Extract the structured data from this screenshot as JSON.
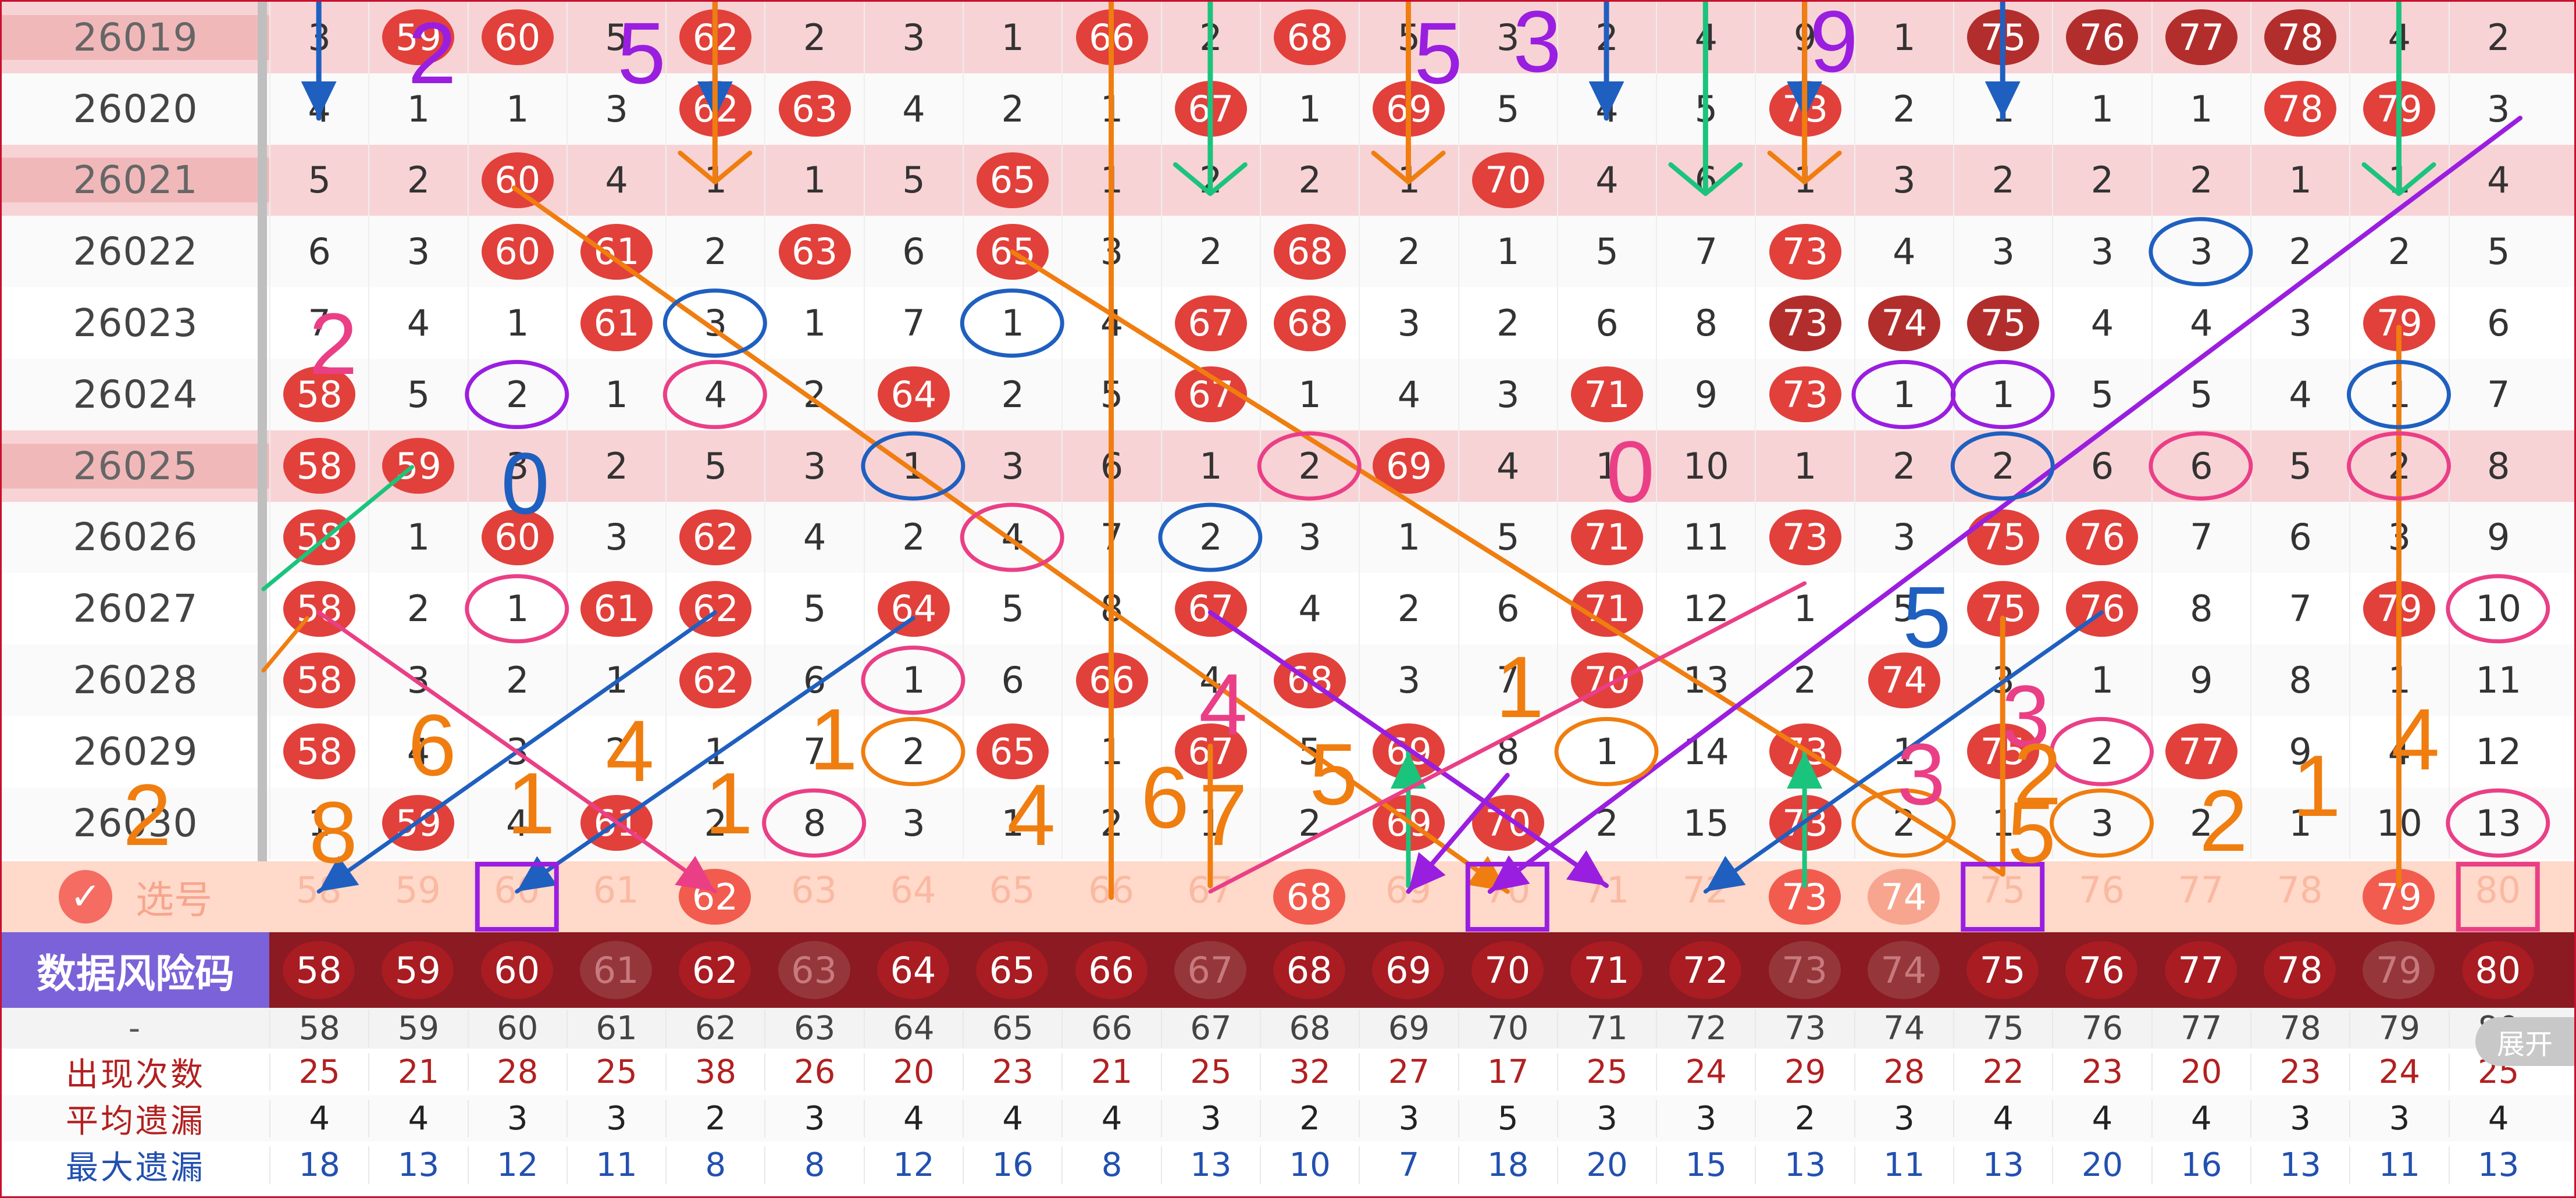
{
  "numbers": [
    "58",
    "59",
    "60",
    "61",
    "62",
    "63",
    "64",
    "65",
    "66",
    "67",
    "68",
    "69",
    "70",
    "71",
    "72",
    "73",
    "74",
    "75",
    "76",
    "77",
    "78",
    "79",
    "80"
  ],
  "rows": [
    {
      "issue": "26019",
      "hl": true,
      "cells": [
        "3",
        "59",
        "60",
        "5",
        "62",
        "2",
        "3",
        "1",
        "66",
        "2",
        "68",
        "5",
        "3",
        "2",
        "4",
        "9",
        "1",
        "75",
        "76",
        "77",
        "78",
        "4",
        "2"
      ],
      "balls": [
        1,
        2,
        4,
        8,
        10,
        17,
        18,
        19,
        20
      ],
      "dark": [
        17,
        18,
        19,
        20
      ]
    },
    {
      "issue": "26020",
      "cells": [
        "4",
        "1",
        "1",
        "3",
        "62",
        "63",
        "4",
        "2",
        "1",
        "67",
        "1",
        "69",
        "5",
        "4",
        "5",
        "73",
        "2",
        "1",
        "1",
        "1",
        "78",
        "79",
        "3"
      ],
      "balls": [
        4,
        5,
        9,
        11,
        15,
        20,
        21
      ]
    },
    {
      "issue": "26021",
      "hl": true,
      "cells": [
        "5",
        "2",
        "60",
        "4",
        "1",
        "1",
        "5",
        "65",
        "1",
        "2",
        "2",
        "1",
        "70",
        "4",
        "6",
        "1",
        "3",
        "2",
        "2",
        "2",
        "1",
        "1",
        "4"
      ],
      "balls": [
        2,
        7,
        12
      ]
    },
    {
      "issue": "26022",
      "cells": [
        "6",
        "3",
        "60",
        "61",
        "2",
        "63",
        "6",
        "65",
        "3",
        "2",
        "68",
        "2",
        "1",
        "5",
        "7",
        "73",
        "4",
        "3",
        "3",
        "3",
        "2",
        "2",
        "5"
      ],
      "balls": [
        2,
        3,
        5,
        7,
        10,
        15
      ]
    },
    {
      "issue": "26023",
      "cells": [
        "7",
        "4",
        "1",
        "61",
        "3",
        "1",
        "7",
        "1",
        "4",
        "67",
        "68",
        "3",
        "2",
        "6",
        "8",
        "73",
        "74",
        "75",
        "4",
        "4",
        "3",
        "79",
        "6"
      ],
      "balls": [
        3,
        9,
        10,
        15,
        16,
        17,
        21
      ],
      "dark": [
        15,
        16,
        17
      ]
    },
    {
      "issue": "26024",
      "cells": [
        "58",
        "5",
        "2",
        "1",
        "4",
        "2",
        "64",
        "2",
        "5",
        "67",
        "1",
        "4",
        "3",
        "71",
        "9",
        "73",
        "1",
        "1",
        "5",
        "5",
        "4",
        "1",
        "7"
      ],
      "balls": [
        0,
        6,
        9,
        13,
        15
      ]
    },
    {
      "issue": "26025",
      "hl": true,
      "cells": [
        "58",
        "59",
        "3",
        "2",
        "5",
        "3",
        "1",
        "3",
        "6",
        "1",
        "2",
        "69",
        "4",
        "1",
        "10",
        "1",
        "2",
        "2",
        "6",
        "6",
        "5",
        "2",
        "8"
      ],
      "balls": [
        0,
        1,
        11
      ]
    },
    {
      "issue": "26026",
      "cells": [
        "58",
        "1",
        "60",
        "3",
        "62",
        "4",
        "2",
        "4",
        "7",
        "2",
        "3",
        "1",
        "5",
        "71",
        "11",
        "73",
        "3",
        "75",
        "76",
        "7",
        "6",
        "3",
        "9"
      ],
      "balls": [
        0,
        2,
        4,
        13,
        15,
        17,
        18
      ]
    },
    {
      "issue": "26027",
      "cells": [
        "58",
        "2",
        "1",
        "61",
        "62",
        "5",
        "64",
        "5",
        "8",
        "67",
        "4",
        "2",
        "6",
        "71",
        "12",
        "1",
        "5",
        "75",
        "76",
        "8",
        "7",
        "79",
        "10"
      ],
      "balls": [
        0,
        3,
        4,
        6,
        9,
        13,
        17,
        18,
        21
      ]
    },
    {
      "issue": "26028",
      "cells": [
        "58",
        "3",
        "2",
        "1",
        "62",
        "6",
        "1",
        "6",
        "66",
        "4",
        "68",
        "3",
        "7",
        "70",
        "13",
        "2",
        "74",
        "3",
        "1",
        "9",
        "8",
        "1",
        "11"
      ],
      "balls": [
        0,
        4,
        8,
        10,
        13,
        16
      ]
    },
    {
      "issue": "26029",
      "cells": [
        "58",
        "4",
        "3",
        "2",
        "1",
        "7",
        "2",
        "65",
        "1",
        "67",
        "5",
        "69",
        "8",
        "1",
        "14",
        "73",
        "1",
        "75",
        "2",
        "77",
        "9",
        "4",
        "12"
      ],
      "balls": [
        0,
        7,
        9,
        11,
        15,
        17,
        19
      ]
    },
    {
      "issue": "26030",
      "cells": [
        "1",
        "59",
        "4",
        "61",
        "2",
        "8",
        "3",
        "1",
        "2",
        "1",
        "2",
        "69",
        "70",
        "2",
        "15",
        "73",
        "2",
        "1",
        "3",
        "2",
        "1",
        "10",
        "13"
      ],
      "balls": [
        1,
        3,
        11,
        12,
        15
      ]
    }
  ],
  "pick_label": "选号",
  "pick_balls": [
    4,
    10,
    15,
    16,
    21
  ],
  "danger_label": "数据风险码",
  "danger_muted": [
    3,
    5,
    9,
    15,
    16,
    21
  ],
  "stats": {
    "dash": "-",
    "appear_label": "出现次数",
    "appear": [
      "25",
      "21",
      "28",
      "25",
      "38",
      "26",
      "20",
      "23",
      "21",
      "25",
      "32",
      "27",
      "17",
      "25",
      "24",
      "29",
      "28",
      "22",
      "23",
      "20",
      "23",
      "24",
      "25"
    ],
    "avg_label": "平均遗漏",
    "avg": [
      "4",
      "4",
      "3",
      "3",
      "2",
      "3",
      "4",
      "4",
      "4",
      "3",
      "2",
      "3",
      "5",
      "3",
      "3",
      "2",
      "3",
      "4",
      "4",
      "4",
      "3",
      "3",
      "4"
    ],
    "max_label": "最大遗漏",
    "max": [
      "18",
      "13",
      "12",
      "11",
      "8",
      "8",
      "12",
      "16",
      "8",
      "13",
      "10",
      "7",
      "18",
      "20",
      "15",
      "13",
      "11",
      "13",
      "20",
      "16",
      "13",
      "11",
      "13"
    ]
  },
  "expand_label": "展开",
  "annotations": [
    "2",
    "5",
    "5",
    "3",
    "9",
    "2",
    "0",
    "0",
    "5",
    "6",
    "4",
    "1",
    "4",
    "1",
    "3",
    "6",
    "7",
    "5",
    "4",
    "1",
    "1",
    "3",
    "2",
    "2",
    "5",
    "2",
    "1",
    "4",
    "8"
  ],
  "colors": {
    "ball": "#e2403b",
    "ball_dark": "#b22e2c",
    "highlight_row": "#f8d3d5",
    "pick_bar": "#ffd9c9",
    "danger_bar": "#8b1a22",
    "danger_label": "#7b62d8",
    "orange": "#f07d0f",
    "blue": "#1f5fc0",
    "purple": "#9a1ee0",
    "pink": "#ea3f86",
    "green": "#1bc47d"
  }
}
